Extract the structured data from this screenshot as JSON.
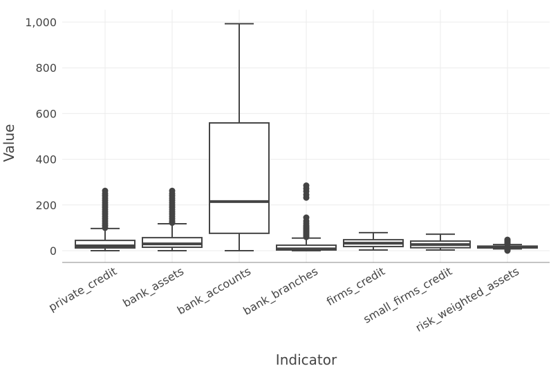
{
  "chart_data": {
    "type": "box",
    "xlabel": "Indicator",
    "ylabel": "Value",
    "ylim": [
      -50,
      1040
    ],
    "yticks": [
      0,
      200,
      400,
      600,
      800,
      1000
    ],
    "ytick_labels": [
      "0",
      "200",
      "400",
      "600",
      "800",
      "1,000"
    ],
    "grid": true,
    "colors": {
      "box": "#444444",
      "grid": "#ebebeb",
      "axis": "#888888"
    },
    "categories": [
      "private_credit",
      "bank_assets",
      "bank_accounts",
      "bank_branches",
      "firms_credit",
      "small_firms_credit",
      "risk_weighted_assets"
    ],
    "boxes": [
      {
        "min": 0,
        "q1": 12,
        "median": 21,
        "q3": 45,
        "max": 97,
        "outliers": [
          100,
          110,
          120,
          130,
          140,
          150,
          160,
          170,
          180,
          190,
          200,
          210,
          220,
          230,
          240,
          250,
          262
        ]
      },
      {
        "min": 0,
        "q1": 15,
        "median": 30,
        "q3": 57,
        "max": 118,
        "outliers": [
          122,
          130,
          140,
          150,
          160,
          170,
          180,
          190,
          200,
          210,
          220,
          230,
          240,
          250,
          262
        ]
      },
      {
        "min": 0,
        "q1": 76,
        "median": 215,
        "q3": 559,
        "max": 993,
        "outliers": []
      },
      {
        "min": 0,
        "q1": 3,
        "median": 8,
        "q3": 24,
        "max": 55,
        "outliers": [
          60,
          65,
          70,
          75,
          80,
          85,
          90,
          95,
          100,
          105,
          110,
          120,
          130,
          145,
          232,
          245,
          260,
          272,
          285
        ]
      },
      {
        "min": 3,
        "q1": 18,
        "median": 33,
        "q3": 48,
        "max": 79,
        "outliers": []
      },
      {
        "min": 3,
        "q1": 13,
        "median": 27,
        "q3": 42,
        "max": 72,
        "outliers": []
      },
      {
        "min": 8,
        "q1": 12,
        "median": 16,
        "q3": 20,
        "max": 27,
        "outliers": [
          0,
          2,
          4,
          6,
          30,
          34,
          38,
          42,
          46,
          48
        ]
      }
    ]
  }
}
